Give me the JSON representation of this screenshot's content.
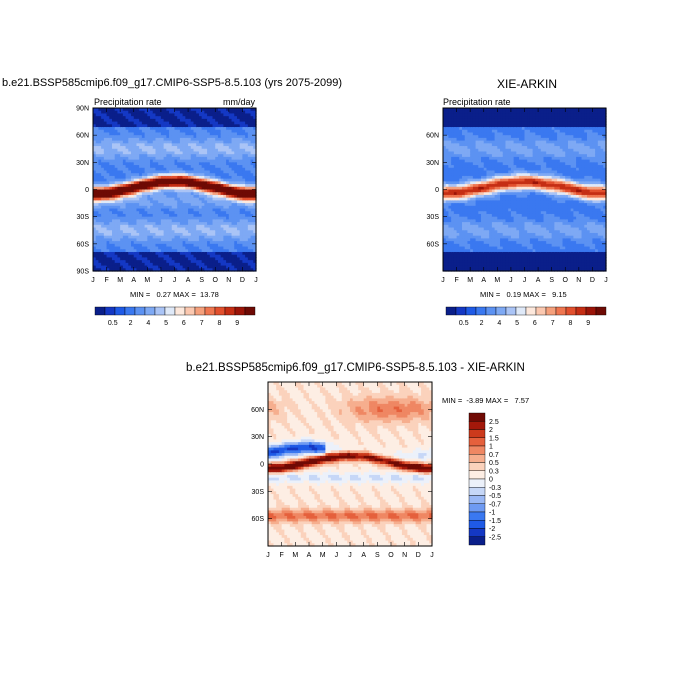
{
  "chart_data": [
    {
      "type": "heatmap",
      "title": "b.e21.BSSP585cmip6.f09_g17.CMIP6-SSP5-8.5.103 (yrs 2075-2099)",
      "subtitle_left": "Precipitation rate",
      "subtitle_right": "mm/day",
      "x_ticks": [
        "J",
        "F",
        "M",
        "A",
        "M",
        "J",
        "J",
        "A",
        "S",
        "O",
        "N",
        "D",
        "J"
      ],
      "y_ticks": [
        "90N",
        "60N",
        "30N",
        "0",
        "30S",
        "60S",
        "90S"
      ],
      "ylim": [
        -90,
        90
      ],
      "minmax": "MIN =   0.27 MAX =  13.78",
      "colorbar_labels": [
        "0.5",
        "2",
        "4",
        "5",
        "6",
        "7",
        "8",
        "9"
      ],
      "itcz_peak": 13.78
    },
    {
      "type": "heatmap",
      "title": "XIE-ARKIN",
      "subtitle_left": "Precipitation rate",
      "x_ticks": [
        "J",
        "F",
        "M",
        "A",
        "M",
        "J",
        "J",
        "A",
        "S",
        "O",
        "N",
        "D",
        "J"
      ],
      "y_ticks": [
        "60N",
        "30N",
        "0",
        "30S",
        "60S"
      ],
      "ylim": [
        -90,
        90
      ],
      "minmax": "MIN =   0.19 MAX =   9.15",
      "colorbar_labels": [
        "0.5",
        "2",
        "4",
        "5",
        "6",
        "7",
        "8",
        "9"
      ],
      "itcz_peak": 9.15
    },
    {
      "type": "heatmap",
      "title": "b.e21.BSSP585cmip6.f09_g17.CMIP6-SSP5-8.5.103 - XIE-ARKIN",
      "x_ticks": [
        "J",
        "F",
        "M",
        "A",
        "M",
        "J",
        "J",
        "A",
        "S",
        "O",
        "N",
        "D",
        "J"
      ],
      "y_ticks": [
        "60N",
        "30N",
        "0",
        "30S",
        "60S"
      ],
      "ylim": [
        -90,
        90
      ],
      "minmax": "MIN =  -3.89 MAX =   7.57",
      "colorbar_labels": [
        "2.5",
        "2",
        "1.5",
        "1",
        "0.7",
        "0.5",
        "0.3",
        "0",
        "-0.3",
        "-0.5",
        "-0.7",
        "-1",
        "-1.5",
        "-2",
        "-2.5"
      ]
    }
  ],
  "colors": {
    "seq": [
      "#0a1f8a",
      "#1438c4",
      "#1f5ae6",
      "#3a78f0",
      "#5c92f2",
      "#7ea9f4",
      "#aac4f6",
      "#dfe9f8",
      "#fde8dc",
      "#fbc8b0",
      "#f5a07c",
      "#ef7650",
      "#e2502e",
      "#c52e14",
      "#9b1408",
      "#6e0a04"
    ],
    "div": [
      "#0a1f8a",
      "#1438c4",
      "#1f5ae6",
      "#3a78f0",
      "#6e9af2",
      "#9ab8f5",
      "#c6d7f7",
      "#ecf1fa",
      "#fdeee4",
      "#fbd2bc",
      "#f6ae8e",
      "#ef8763",
      "#e5603c",
      "#cc3a1c",
      "#a3180a",
      "#700a04"
    ]
  }
}
